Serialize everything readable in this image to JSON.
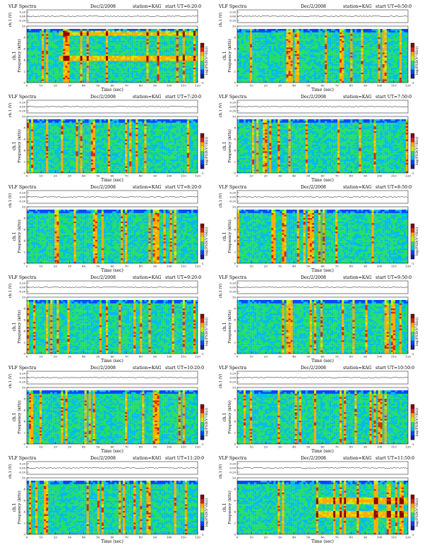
{
  "page": {
    "common": {
      "header_left": "VLF Spectra",
      "date": "Dec/2/2008",
      "station": "station=KAG",
      "start_prefix": "start  UT"
    },
    "colorbar_label": "log(PSD(V²/Hz))",
    "colors": {
      "scale": [
        "#1a1a8c",
        "#0044ff",
        "#00bbee",
        "#22dd66",
        "#ccee00",
        "#ffaa00",
        "#dd2200",
        "#880000"
      ],
      "white_band": "#ffffff"
    }
  },
  "chart_data": [
    {
      "type": "heatmap",
      "title_left": "VLF Spectra",
      "date": "Dec/2/2008",
      "station": "station=KAG",
      "start_ut": "=6:20:0",
      "top_ylabel": "ch.1 (V)",
      "top_yticks": [
        "0.20",
        "0.00",
        "-0.20"
      ],
      "ylabel_top": "ch.1",
      "ylabel": "Frequency (kHz)",
      "yticks": [
        "0",
        "2",
        "4",
        "6",
        "8",
        "10"
      ],
      "ylim": [
        0,
        10
      ],
      "xlabel": "Time (sec)",
      "xticks": [
        "0",
        "10",
        "20",
        "30",
        "40",
        "50",
        "60",
        "70",
        "80",
        "90",
        "100",
        "110",
        "120"
      ],
      "xlim": [
        0,
        120
      ],
      "colorbar_label": "log(PSD(V²/Hz))",
      "colorbar_ticks": [
        "-1"
      ],
      "features": {
        "cutoff_khz": 9.5,
        "bright_bands_khz": [
          4.2,
          8.6
        ],
        "band_start_sec": 22
      }
    },
    {
      "type": "heatmap",
      "title_left": "VLF Spectra",
      "date": "Dec/2/2008",
      "station": "station=KAG",
      "start_ut": "=6:50:0",
      "top_ylabel": "ch.1 (V)",
      "top_yticks": [
        "0.20",
        "0.00",
        "-0.20"
      ],
      "ylabel_top": "ch.1",
      "ylabel": "Frequency (kHz)",
      "yticks": [
        "0",
        "2",
        "4",
        "6",
        "8",
        "10"
      ],
      "ylim": [
        0,
        10
      ],
      "xlabel": "Time (sec)",
      "xticks": [
        "0",
        "10",
        "20",
        "30",
        "40",
        "50",
        "60",
        "70",
        "80",
        "90",
        "100",
        "110",
        "120"
      ],
      "xlim": [
        0,
        120
      ],
      "colorbar_label": "log(PSD(V²/Hz))",
      "colorbar_ticks": [
        "-1"
      ],
      "features": {
        "cutoff_khz": 9.5,
        "bright_bands_khz": [],
        "band_start_sec": 0
      }
    },
    {
      "type": "heatmap",
      "title_left": "VLF Spectra",
      "date": "Dec/2/2008",
      "station": "station=KAG",
      "start_ut": "=7:20:0",
      "top_ylabel": "ch.1 (V)",
      "top_yticks": [
        "0.20",
        "0.00",
        "-0.20"
      ],
      "ylabel_top": "ch.1",
      "ylabel": "Frequency (kHz)",
      "yticks": [
        "0",
        "2",
        "4",
        "6",
        "8",
        "10"
      ],
      "ylim": [
        0,
        10
      ],
      "xlabel": "Time (sec)",
      "xticks": [
        "0",
        "10",
        "20",
        "30",
        "40",
        "50",
        "60",
        "70",
        "80",
        "90",
        "100",
        "110",
        "120"
      ],
      "xlim": [
        0,
        120
      ],
      "colorbar_label": "log(PSD(V²/Hz))",
      "colorbar_ticks": [
        "-1"
      ],
      "features": {
        "cutoff_khz": 9.5,
        "bright_bands_khz": [],
        "band_start_sec": 0
      }
    },
    {
      "type": "heatmap",
      "title_left": "VLF Spectra",
      "date": "Dec/2/2008",
      "station": "station=KAG",
      "start_ut": "=7:50:0",
      "top_ylabel": "ch.1 (V)",
      "top_yticks": [
        "0.20",
        "0.00",
        "-0.20"
      ],
      "ylabel_top": "ch.1",
      "ylabel": "Frequency (kHz)",
      "yticks": [
        "0",
        "2",
        "4",
        "6",
        "8",
        "10"
      ],
      "ylim": [
        0,
        10
      ],
      "xlabel": "Time (sec)",
      "xticks": [
        "0",
        "10",
        "20",
        "30",
        "40",
        "50",
        "60",
        "70",
        "80",
        "90",
        "100",
        "110",
        "120"
      ],
      "xlim": [
        0,
        120
      ],
      "colorbar_label": "log(PSD(V²/Hz))",
      "colorbar_ticks": [
        "-1"
      ],
      "features": {
        "cutoff_khz": 9.5,
        "bright_bands_khz": [],
        "band_start_sec": 0
      }
    },
    {
      "type": "heatmap",
      "title_left": "VLF Spectra",
      "date": "Dec/2/2008",
      "station": "station=KAG",
      "start_ut": "=8:20:0",
      "top_ylabel": "ch.1 (V)",
      "top_yticks": [
        "0.20",
        "0.00",
        "-0.20"
      ],
      "ylabel_top": "ch.1",
      "ylabel": "Frequency (kHz)",
      "yticks": [
        "0",
        "2",
        "4",
        "6",
        "8",
        "10"
      ],
      "ylim": [
        0,
        10
      ],
      "xlabel": "Time (sec)",
      "xticks": [
        "0",
        "10",
        "20",
        "30",
        "40",
        "50",
        "60",
        "70",
        "80",
        "90",
        "100",
        "110",
        "120"
      ],
      "xlim": [
        0,
        120
      ],
      "colorbar_label": "log(PSD(V²/Hz))",
      "colorbar_ticks": [
        "-1"
      ],
      "features": {
        "cutoff_khz": 9.5,
        "bright_bands_khz": [],
        "band_start_sec": 0
      }
    },
    {
      "type": "heatmap",
      "title_left": "VLF Spectra",
      "date": "Dec/2/2008",
      "station": "station=KAG",
      "start_ut": "=8:50:0",
      "top_ylabel": "ch.1 (V)",
      "top_yticks": [
        "0.20",
        "0.00",
        "-0.20"
      ],
      "ylabel_top": "ch.1",
      "ylabel": "Frequency (kHz)",
      "yticks": [
        "0",
        "2",
        "4",
        "6",
        "8",
        "10"
      ],
      "ylim": [
        0,
        10
      ],
      "xlabel": "Time (sec)",
      "xticks": [
        "0",
        "10",
        "20",
        "30",
        "40",
        "50",
        "60",
        "70",
        "80",
        "90",
        "100",
        "110",
        "120"
      ],
      "xlim": [
        0,
        120
      ],
      "colorbar_label": "log(PSD(V²/Hz))",
      "colorbar_ticks": [
        "-1"
      ],
      "features": {
        "cutoff_khz": 9.5,
        "bright_bands_khz": [],
        "band_start_sec": 0
      }
    },
    {
      "type": "heatmap",
      "title_left": "VLF Spectra",
      "date": "Dec/2/2008",
      "station": "station=KAG",
      "start_ut": "=9:20:0",
      "top_ylabel": "ch.1 (V)",
      "top_yticks": [
        "0.20",
        "0.00",
        "-0.20"
      ],
      "ylabel_top": "ch.1",
      "ylabel": "Frequency (kHz)",
      "yticks": [
        "0",
        "2",
        "4",
        "6",
        "8",
        "10"
      ],
      "ylim": [
        0,
        10
      ],
      "xlabel": "Time (sec)",
      "xticks": [
        "0",
        "10",
        "20",
        "30",
        "40",
        "50",
        "60",
        "70",
        "80",
        "90",
        "100",
        "110",
        "120"
      ],
      "xlim": [
        0,
        120
      ],
      "colorbar_label": "log(PSD(V²/Hz))",
      "colorbar_ticks": [
        "-1"
      ],
      "features": {
        "cutoff_khz": 9.5,
        "bright_bands_khz": [],
        "band_start_sec": 0
      }
    },
    {
      "type": "heatmap",
      "title_left": "VLF Spectra",
      "date": "Dec/2/2008",
      "station": "station=KAG",
      "start_ut": "=9:50:0",
      "top_ylabel": "ch.1 (V)",
      "top_yticks": [
        "0.20",
        "0.00",
        "-0.20"
      ],
      "ylabel_top": "ch.1",
      "ylabel": "Frequency (kHz)",
      "yticks": [
        "0",
        "2",
        "4",
        "6",
        "8",
        "10"
      ],
      "ylim": [
        0,
        10
      ],
      "xlabel": "Time (sec)",
      "xticks": [
        "0",
        "10",
        "20",
        "30",
        "40",
        "50",
        "60",
        "70",
        "80",
        "90",
        "100",
        "110",
        "120"
      ],
      "xlim": [
        0,
        120
      ],
      "colorbar_label": "log(PSD(V²/Hz))",
      "colorbar_ticks": [
        "-1"
      ],
      "features": {
        "cutoff_khz": 9.5,
        "bright_bands_khz": [],
        "band_start_sec": 0
      }
    },
    {
      "type": "heatmap",
      "title_left": "VLF Spectra",
      "date": "Dec/2/2008",
      "station": "station=KAG",
      "start_ut": "=10:20:0",
      "top_ylabel": "ch.1 (V)",
      "top_yticks": [
        "0.20",
        "0.00",
        "-0.20"
      ],
      "ylabel_top": "ch.1",
      "ylabel": "Frequency (kHz)",
      "yticks": [
        "0",
        "2",
        "4",
        "6",
        "8",
        "10"
      ],
      "ylim": [
        0,
        10
      ],
      "xlabel": "Time (sec)",
      "xticks": [
        "0",
        "10",
        "20",
        "30",
        "40",
        "50",
        "60",
        "70",
        "80",
        "90",
        "100",
        "110",
        "120"
      ],
      "xlim": [
        0,
        120
      ],
      "colorbar_label": "log(PSD(V²/Hz))",
      "colorbar_ticks": [
        "-1"
      ],
      "features": {
        "cutoff_khz": 9.5,
        "bright_bands_khz": [],
        "band_start_sec": 0
      }
    },
    {
      "type": "heatmap",
      "title_left": "VLF Spectra",
      "date": "Dec/2/2008",
      "station": "station=KAG",
      "start_ut": "=10:50:0",
      "top_ylabel": "ch.1 (V)",
      "top_yticks": [
        "0.20",
        "0.00",
        "-0.20"
      ],
      "ylabel_top": "ch.1",
      "ylabel": "Frequency (kHz)",
      "yticks": [
        "0",
        "2",
        "4",
        "6",
        "8",
        "10"
      ],
      "ylim": [
        0,
        10
      ],
      "xlabel": "Time (sec)",
      "xticks": [
        "0",
        "10",
        "20",
        "30",
        "40",
        "50",
        "60",
        "70",
        "80",
        "90",
        "100",
        "110",
        "120"
      ],
      "xlim": [
        0,
        120
      ],
      "colorbar_label": "log(PSD(V²/Hz))",
      "colorbar_ticks": [
        "-1"
      ],
      "features": {
        "cutoff_khz": 9.5,
        "bright_bands_khz": [],
        "band_start_sec": 0
      }
    },
    {
      "type": "heatmap",
      "title_left": "VLF Spectra",
      "date": "Dec/2/2008",
      "station": "station=KAG",
      "start_ut": "=11:20:0",
      "top_ylabel": "ch.1 (V)",
      "top_yticks": [
        "0.20",
        "0.00",
        "-0.20"
      ],
      "ylabel_top": "ch.1",
      "ylabel": "Frequency (kHz)",
      "yticks": [
        "0",
        "2",
        "4",
        "6",
        "8",
        "10"
      ],
      "ylim": [
        0,
        10
      ],
      "xlabel": "Time (sec)",
      "xticks": [
        "0",
        "10",
        "20",
        "30",
        "40",
        "50",
        "60",
        "70",
        "80",
        "90",
        "100",
        "110",
        "120"
      ],
      "xlim": [
        0,
        120
      ],
      "colorbar_label": "log(PSD(V²/Hz))",
      "colorbar_ticks": [
        "-1"
      ],
      "features": {
        "cutoff_khz": 9.5,
        "bright_bands_khz": [],
        "band_start_sec": 0
      }
    },
    {
      "type": "heatmap",
      "title_left": "VLF Spectra",
      "date": "Dec/2/2008",
      "station": "station=KAG",
      "start_ut": "=11:50:0",
      "top_ylabel": "ch.1 (V)",
      "top_yticks": [
        "0.20",
        "0.00",
        "-0.20"
      ],
      "ylabel_top": "ch.1",
      "ylabel": "Frequency (kHz)",
      "yticks": [
        "0",
        "2",
        "4",
        "6",
        "8",
        "10"
      ],
      "ylim": [
        0,
        10
      ],
      "xlabel": "Time (sec)",
      "xticks": [
        "0",
        "10",
        "20",
        "30",
        "40",
        "50",
        "60",
        "70",
        "80",
        "90",
        "100",
        "110",
        "120"
      ],
      "xlim": [
        0,
        120
      ],
      "colorbar_label": "log(PSD(V²/Hz))",
      "colorbar_ticks": [
        "-1"
      ],
      "features": {
        "cutoff_khz": 9.5,
        "bright_bands_khz": [
          3.4,
          5.8
        ],
        "band_start_sec": 55
      }
    }
  ]
}
